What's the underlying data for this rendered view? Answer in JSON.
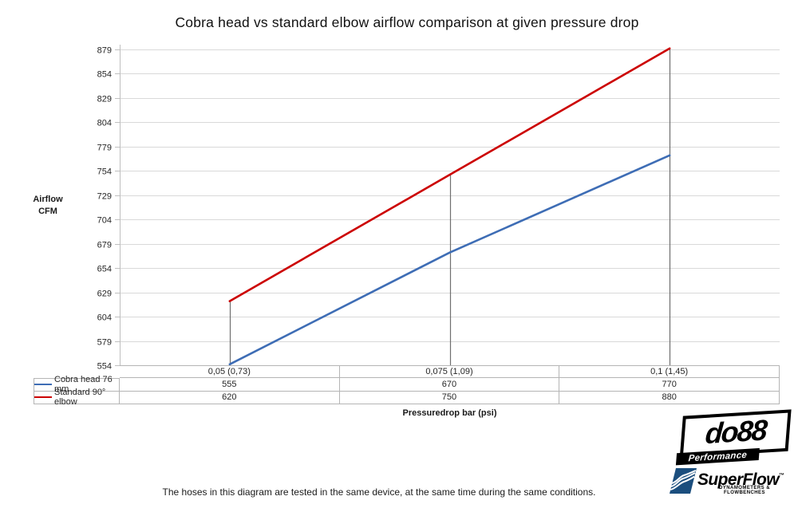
{
  "title": "Cobra head vs standard elbow airflow comparison at given pressure drop",
  "caption": "The hoses in this diagram are tested in the same device, at the same time during the same conditions.",
  "chart_data": {
    "type": "line",
    "title": "Cobra head vs standard elbow airflow comparison at given pressure drop",
    "xlabel": "Pressuredrop bar (psi)",
    "ylabel": "Airflow\nCFM",
    "categories": [
      "0,05 (0,73)",
      "0,075 (1,09)",
      "0,1 (1,45)"
    ],
    "series": [
      {
        "name": "Cobra head 76 mm",
        "color": "#3E6DB5",
        "values": [
          555,
          670,
          770
        ]
      },
      {
        "name": "Standard 90° elbow",
        "color": "#CC0000",
        "values": [
          620,
          750,
          880
        ]
      }
    ],
    "ylim": [
      554,
      879
    ],
    "yticks": [
      554,
      579,
      604,
      629,
      654,
      679,
      704,
      729,
      754,
      779,
      804,
      829,
      854,
      879
    ],
    "grid": true,
    "drop_lines": true,
    "legend_position": "table-left",
    "colors": {
      "gridline": "#d9d9d9",
      "axis": "#bfbfbf",
      "drop_line": "#6f6f6f",
      "table_border": "#b5b5b5",
      "tick_text": "#262626"
    }
  },
  "logos": {
    "do88": {
      "text": "do88",
      "subtext": "Performance"
    },
    "superflow": {
      "text": "SuperFlow",
      "mark": "™",
      "tagline": "DYNAMOMETERS & FLOWBENCHES",
      "color": "#1B4E7E"
    }
  }
}
